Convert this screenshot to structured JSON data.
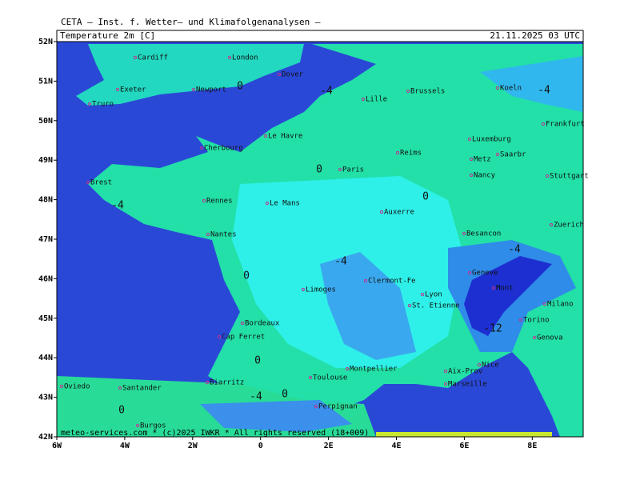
{
  "header": {
    "institute": "CETA – Inst. f. Wetter– und Klimafolgenanalysen –",
    "field": "Temperature 2m [C]",
    "time": "21.11.2025 03 UTC"
  },
  "map": {
    "xlim": [
      -6,
      9.5
    ],
    "ylim": [
      42,
      52
    ],
    "xticks": [
      {
        "value": -6,
        "label": "6W"
      },
      {
        "value": -4,
        "label": "4W"
      },
      {
        "value": -2,
        "label": "2W"
      },
      0,
      {
        "value": 2,
        "label": "2E"
      },
      {
        "value": 4,
        "label": "4E"
      },
      {
        "value": 6,
        "label": "6E"
      },
      {
        "value": 8,
        "label": "8E"
      }
    ],
    "yticks": [
      {
        "value": 42,
        "label": "42N"
      },
      {
        "value": 43,
        "label": "43N"
      },
      {
        "value": 44,
        "label": "44N"
      },
      {
        "value": 45,
        "label": "45N"
      },
      {
        "value": 46,
        "label": "46N"
      },
      {
        "value": 47,
        "label": "47N"
      },
      {
        "value": 48,
        "label": "48N"
      },
      {
        "value": 49,
        "label": "49N"
      },
      {
        "value": 50,
        "label": "50N"
      },
      {
        "value": 51,
        "label": "51N"
      },
      {
        "value": 52,
        "label": "52N"
      }
    ],
    "cities": [
      "Cardiff",
      "London",
      "Dover",
      "Exeter",
      "Newport",
      "Truro",
      "Lille",
      "Brussels",
      "Koeln",
      "Frankfurt",
      "Luxemburg",
      "Le Havre",
      "Cherbourg",
      "Reims",
      "Metz",
      "Saarbr",
      "Paris",
      "Nancy",
      "Stuttgart",
      "Brest",
      "Rennes",
      "Le Mans",
      "Auxerre",
      "Besancon",
      "Zuerich",
      "Nantes",
      "Geneve",
      "Clermont-Fe",
      "Limoges",
      "Lyon",
      "Mont",
      "St. Etienne",
      "Milano",
      "Bordeaux",
      "Torino",
      "Cap Ferret",
      "Genova",
      "Nice",
      "Montpellier",
      "Aix-Prov",
      "Toulouse",
      "Biarritz",
      "Marseille",
      "Santander",
      "Oviedo",
      "Perpignan",
      "Burgos"
    ],
    "contour_labels": [
      "0",
      "-4",
      "-4",
      "0",
      "0",
      "-4",
      "-4",
      "-4",
      "0",
      "-12",
      "0",
      "0",
      "-4",
      "0"
    ]
  },
  "footer": "meteo-services.com * (c)2025 IWKR * All rights reserved (18+009)"
}
